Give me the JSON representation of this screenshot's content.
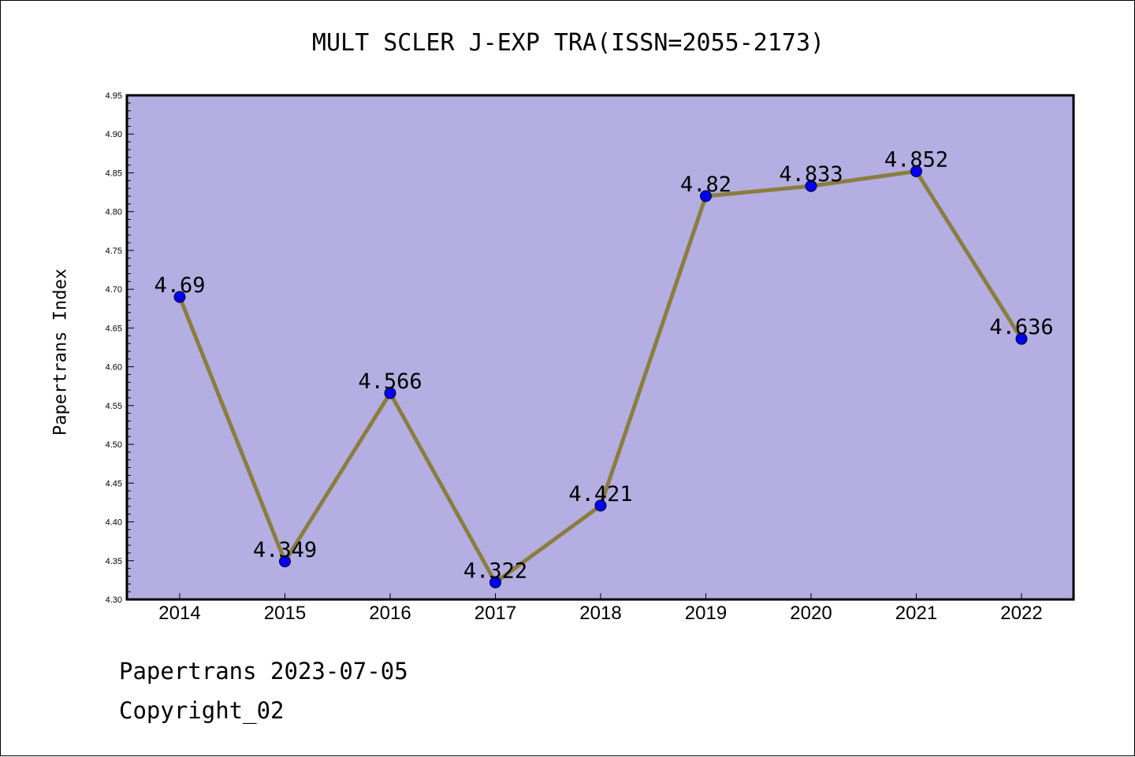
{
  "chart_data": {
    "type": "line",
    "title": "MULT SCLER J-EXP TRA(ISSN=2055-2173)",
    "xlabel": "",
    "ylabel": "Papertrans Index",
    "categories": [
      "2014",
      "2015",
      "2016",
      "2017",
      "2018",
      "2019",
      "2020",
      "2021",
      "2022"
    ],
    "series": [
      {
        "values": [
          4.69,
          4.349,
          4.566,
          4.322,
          4.421,
          4.82,
          4.833,
          4.852,
          4.636
        ],
        "labels": [
          "4.69",
          "4.349",
          "4.566",
          "4.322",
          "4.421",
          "4.82",
          "4.833",
          "4.852",
          "4.636"
        ]
      }
    ],
    "ylim": [
      4.3,
      4.95
    ],
    "yticks": [
      "4.30",
      "4.35",
      "4.40",
      "4.45",
      "4.50",
      "4.55",
      "4.60",
      "4.65",
      "4.70",
      "4.75",
      "4.80",
      "4.85",
      "4.90",
      "4.95"
    ],
    "grid": false,
    "colors": {
      "plot_background": "#b4aee2",
      "line": "#8b7d3e",
      "marker": "#0000ee"
    }
  },
  "footer": {
    "date_text": "Papertrans 2023-07-05",
    "copyright": "Copyright_02"
  }
}
